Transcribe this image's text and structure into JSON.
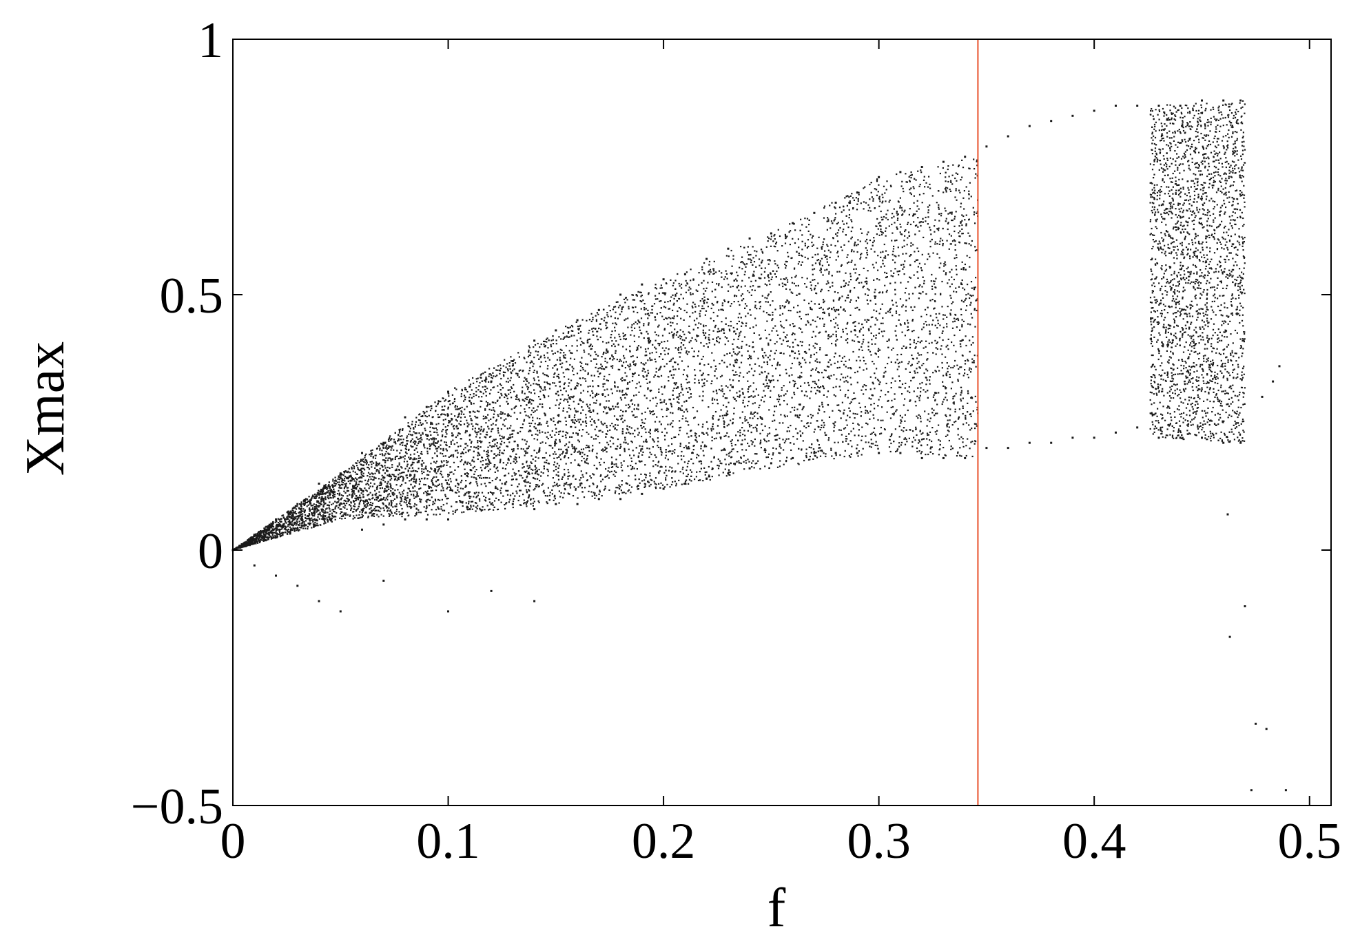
{
  "chart_data": {
    "type": "scatter",
    "title": "",
    "xlabel": "f",
    "ylabel": "Xmax",
    "xlim": [
      0,
      0.51
    ],
    "ylim": [
      -0.5,
      1
    ],
    "grid": false,
    "xticks": [
      0,
      0.1,
      0.2,
      0.3,
      0.4,
      0.5
    ],
    "xtick_labels": [
      "0",
      "0.1",
      "0.2",
      "0.3",
      "0.4",
      "0.5"
    ],
    "yticks": [
      -0.5,
      0,
      0.5,
      1
    ],
    "ytick_labels": [
      "−0.5",
      "0",
      "0.5",
      "1"
    ],
    "point_color": "#1a1a1a",
    "marker_line": {
      "x": 0.346,
      "color": "#e8502a"
    },
    "series": [
      {
        "values": [
          {
            "x": 0.0,
            "y": 0.0
          },
          {
            "x": 0.01,
            "y": 0.03
          },
          {
            "x": 0.01,
            "y": -0.03
          },
          {
            "x": 0.02,
            "y": 0.06
          },
          {
            "x": 0.02,
            "y": -0.05
          },
          {
            "x": 0.03,
            "y": 0.09
          },
          {
            "x": 0.03,
            "y": -0.07
          },
          {
            "x": 0.04,
            "y": 0.13
          },
          {
            "x": 0.04,
            "y": -0.1
          },
          {
            "x": 0.05,
            "y": 0.15
          },
          {
            "x": 0.05,
            "y": -0.12
          },
          {
            "x": 0.06,
            "y": 0.19
          },
          {
            "x": 0.06,
            "y": 0.04
          },
          {
            "x": 0.07,
            "y": 0.21
          },
          {
            "x": 0.07,
            "y": 0.05
          },
          {
            "x": 0.07,
            "y": -0.06
          },
          {
            "x": 0.08,
            "y": 0.26
          },
          {
            "x": 0.08,
            "y": 0.06
          },
          {
            "x": 0.09,
            "y": 0.28
          },
          {
            "x": 0.09,
            "y": 0.06
          },
          {
            "x": 0.1,
            "y": 0.31
          },
          {
            "x": 0.1,
            "y": 0.06
          },
          {
            "x": 0.1,
            "y": -0.12
          },
          {
            "x": 0.11,
            "y": 0.32
          },
          {
            "x": 0.11,
            "y": 0.08
          },
          {
            "x": 0.12,
            "y": 0.33
          },
          {
            "x": 0.12,
            "y": 0.09
          },
          {
            "x": 0.12,
            "y": -0.08
          },
          {
            "x": 0.13,
            "y": 0.37
          },
          {
            "x": 0.13,
            "y": 0.09
          },
          {
            "x": 0.14,
            "y": 0.41
          },
          {
            "x": 0.14,
            "y": 0.08
          },
          {
            "x": 0.14,
            "y": -0.1
          },
          {
            "x": 0.15,
            "y": 0.43
          },
          {
            "x": 0.15,
            "y": 0.09
          },
          {
            "x": 0.16,
            "y": 0.45
          },
          {
            "x": 0.16,
            "y": 0.09
          },
          {
            "x": 0.17,
            "y": 0.47
          },
          {
            "x": 0.17,
            "y": 0.1
          },
          {
            "x": 0.18,
            "y": 0.5
          },
          {
            "x": 0.18,
            "y": 0.1
          },
          {
            "x": 0.19,
            "y": 0.52
          },
          {
            "x": 0.19,
            "y": 0.11
          },
          {
            "x": 0.2,
            "y": 0.53
          },
          {
            "x": 0.2,
            "y": 0.12
          },
          {
            "x": 0.21,
            "y": 0.54
          },
          {
            "x": 0.21,
            "y": 0.13
          },
          {
            "x": 0.22,
            "y": 0.57
          },
          {
            "x": 0.22,
            "y": 0.14
          },
          {
            "x": 0.23,
            "y": 0.59
          },
          {
            "x": 0.23,
            "y": 0.15
          },
          {
            "x": 0.24,
            "y": 0.61
          },
          {
            "x": 0.24,
            "y": 0.16
          },
          {
            "x": 0.25,
            "y": 0.62
          },
          {
            "x": 0.25,
            "y": 0.17
          },
          {
            "x": 0.26,
            "y": 0.64
          },
          {
            "x": 0.26,
            "y": 0.18
          },
          {
            "x": 0.27,
            "y": 0.66
          },
          {
            "x": 0.27,
            "y": 0.19
          },
          {
            "x": 0.28,
            "y": 0.68
          },
          {
            "x": 0.28,
            "y": 0.19
          },
          {
            "x": 0.29,
            "y": 0.7
          },
          {
            "x": 0.29,
            "y": 0.19
          },
          {
            "x": 0.3,
            "y": 0.73
          },
          {
            "x": 0.3,
            "y": 0.19
          },
          {
            "x": 0.31,
            "y": 0.74
          },
          {
            "x": 0.31,
            "y": 0.19
          },
          {
            "x": 0.32,
            "y": 0.75
          },
          {
            "x": 0.32,
            "y": 0.18
          },
          {
            "x": 0.33,
            "y": 0.76
          },
          {
            "x": 0.33,
            "y": 0.18
          },
          {
            "x": 0.34,
            "y": 0.77
          },
          {
            "x": 0.34,
            "y": 0.18
          },
          {
            "x": 0.35,
            "y": 0.79
          },
          {
            "x": 0.35,
            "y": 0.2
          },
          {
            "x": 0.36,
            "y": 0.81
          },
          {
            "x": 0.36,
            "y": 0.2
          },
          {
            "x": 0.37,
            "y": 0.83
          },
          {
            "x": 0.37,
            "y": 0.21
          },
          {
            "x": 0.38,
            "y": 0.84
          },
          {
            "x": 0.38,
            "y": 0.21
          },
          {
            "x": 0.39,
            "y": 0.85
          },
          {
            "x": 0.39,
            "y": 0.22
          },
          {
            "x": 0.4,
            "y": 0.86
          },
          {
            "x": 0.4,
            "y": 0.22
          },
          {
            "x": 0.41,
            "y": 0.87
          },
          {
            "x": 0.41,
            "y": 0.23
          },
          {
            "x": 0.42,
            "y": 0.87
          },
          {
            "x": 0.42,
            "y": 0.24
          },
          {
            "x": 0.43,
            "y": 0.87
          },
          {
            "x": 0.43,
            "y": 0.22
          },
          {
            "x": 0.44,
            "y": 0.87
          },
          {
            "x": 0.44,
            "y": 0.22
          },
          {
            "x": 0.45,
            "y": 0.88
          },
          {
            "x": 0.45,
            "y": 0.22
          },
          {
            "x": 0.46,
            "y": 0.88
          },
          {
            "x": 0.46,
            "y": 0.21
          },
          {
            "x": 0.468,
            "y": 0.88
          },
          {
            "x": 0.468,
            "y": 0.21
          },
          {
            "x": 0.462,
            "y": 0.07
          },
          {
            "x": 0.463,
            "y": -0.17
          },
          {
            "x": 0.47,
            "y": -0.11
          },
          {
            "x": 0.475,
            "y": -0.34
          },
          {
            "x": 0.48,
            "y": -0.35
          },
          {
            "x": 0.478,
            "y": 0.3
          },
          {
            "x": 0.483,
            "y": 0.33
          },
          {
            "x": 0.486,
            "y": 0.36
          },
          {
            "x": 0.473,
            "y": -0.47
          },
          {
            "x": 0.489,
            "y": -0.47
          }
        ]
      }
    ],
    "bands": [
      {
        "x_min": 0.0,
        "x_max": 0.346,
        "lower": [
          [
            0,
            0.0
          ],
          [
            0.05,
            0.06
          ],
          [
            0.1,
            0.07
          ],
          [
            0.15,
            0.09
          ],
          [
            0.2,
            0.12
          ],
          [
            0.25,
            0.16
          ],
          [
            0.3,
            0.19
          ],
          [
            0.346,
            0.18
          ]
        ],
        "upper": [
          [
            0,
            0.0
          ],
          [
            0.05,
            0.15
          ],
          [
            0.1,
            0.31
          ],
          [
            0.15,
            0.43
          ],
          [
            0.2,
            0.53
          ],
          [
            0.25,
            0.62
          ],
          [
            0.3,
            0.73
          ],
          [
            0.346,
            0.77
          ]
        ]
      },
      {
        "x_min": 0.426,
        "x_max": 0.47,
        "lower": [
          [
            0.426,
            0.22
          ],
          [
            0.47,
            0.21
          ]
        ],
        "upper": [
          [
            0.426,
            0.87
          ],
          [
            0.47,
            0.88
          ]
        ]
      }
    ]
  }
}
